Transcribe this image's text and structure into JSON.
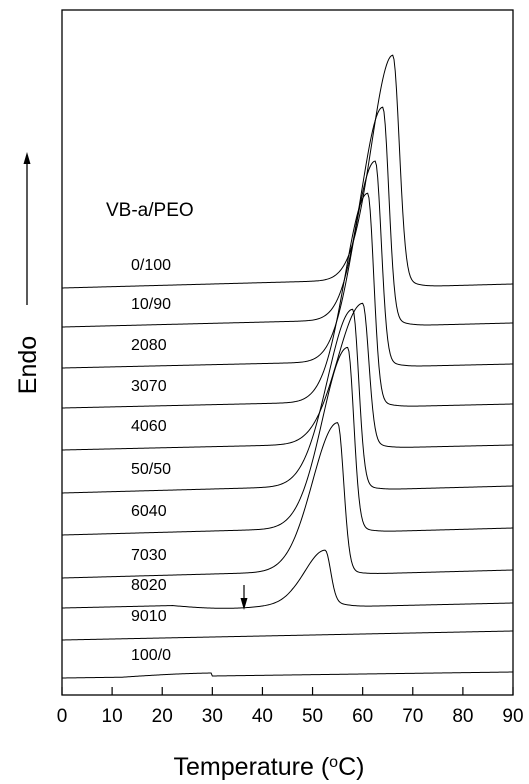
{
  "chart_data": {
    "type": "line",
    "xlabel_main": "Temperature (",
    "xlabel_sup": "o",
    "xlabel_end": "C)",
    "ylabel": "Endo",
    "legend_header": "VB-a/PEO",
    "xlim": [
      0,
      90
    ],
    "x_ticks": [
      0,
      10,
      20,
      30,
      40,
      50,
      60,
      70,
      80,
      90
    ],
    "x_tick_labels": [
      "0",
      "10",
      "20",
      "30",
      "40",
      "50",
      "60",
      "70",
      "80",
      "90"
    ],
    "grid": false,
    "y_tick_labels": false,
    "annotation": "downward arrow near 36 °C on the 8020 curve",
    "series": [
      {
        "name": "0/100",
        "peak_x": 66.0,
        "relative_peak_height": 5.6
      },
      {
        "name": "10/90",
        "peak_x": 64.0,
        "relative_peak_height": 5.3
      },
      {
        "name": "2080",
        "peak_x": 62.5,
        "relative_peak_height": 5.0
      },
      {
        "name": "3070",
        "peak_x": 61.0,
        "relative_peak_height": 5.2
      },
      {
        "name": "4060",
        "peak_x": 60.0,
        "relative_peak_height": 3.5
      },
      {
        "name": "50/50",
        "peak_x": 58.0,
        "relative_peak_height": 4.4
      },
      {
        "name": "6040",
        "peak_x": 57.0,
        "relative_peak_height": 4.5
      },
      {
        "name": "7030",
        "peak_x": 55.0,
        "relative_peak_height": 3.7
      },
      {
        "name": "8020",
        "peak_x": 52.5,
        "relative_peak_height": 1.3
      },
      {
        "name": "9010",
        "peak_x": null,
        "relative_peak_height": 0
      },
      {
        "name": "100/0",
        "peak_x": null,
        "relative_peak_height": 0
      }
    ]
  }
}
